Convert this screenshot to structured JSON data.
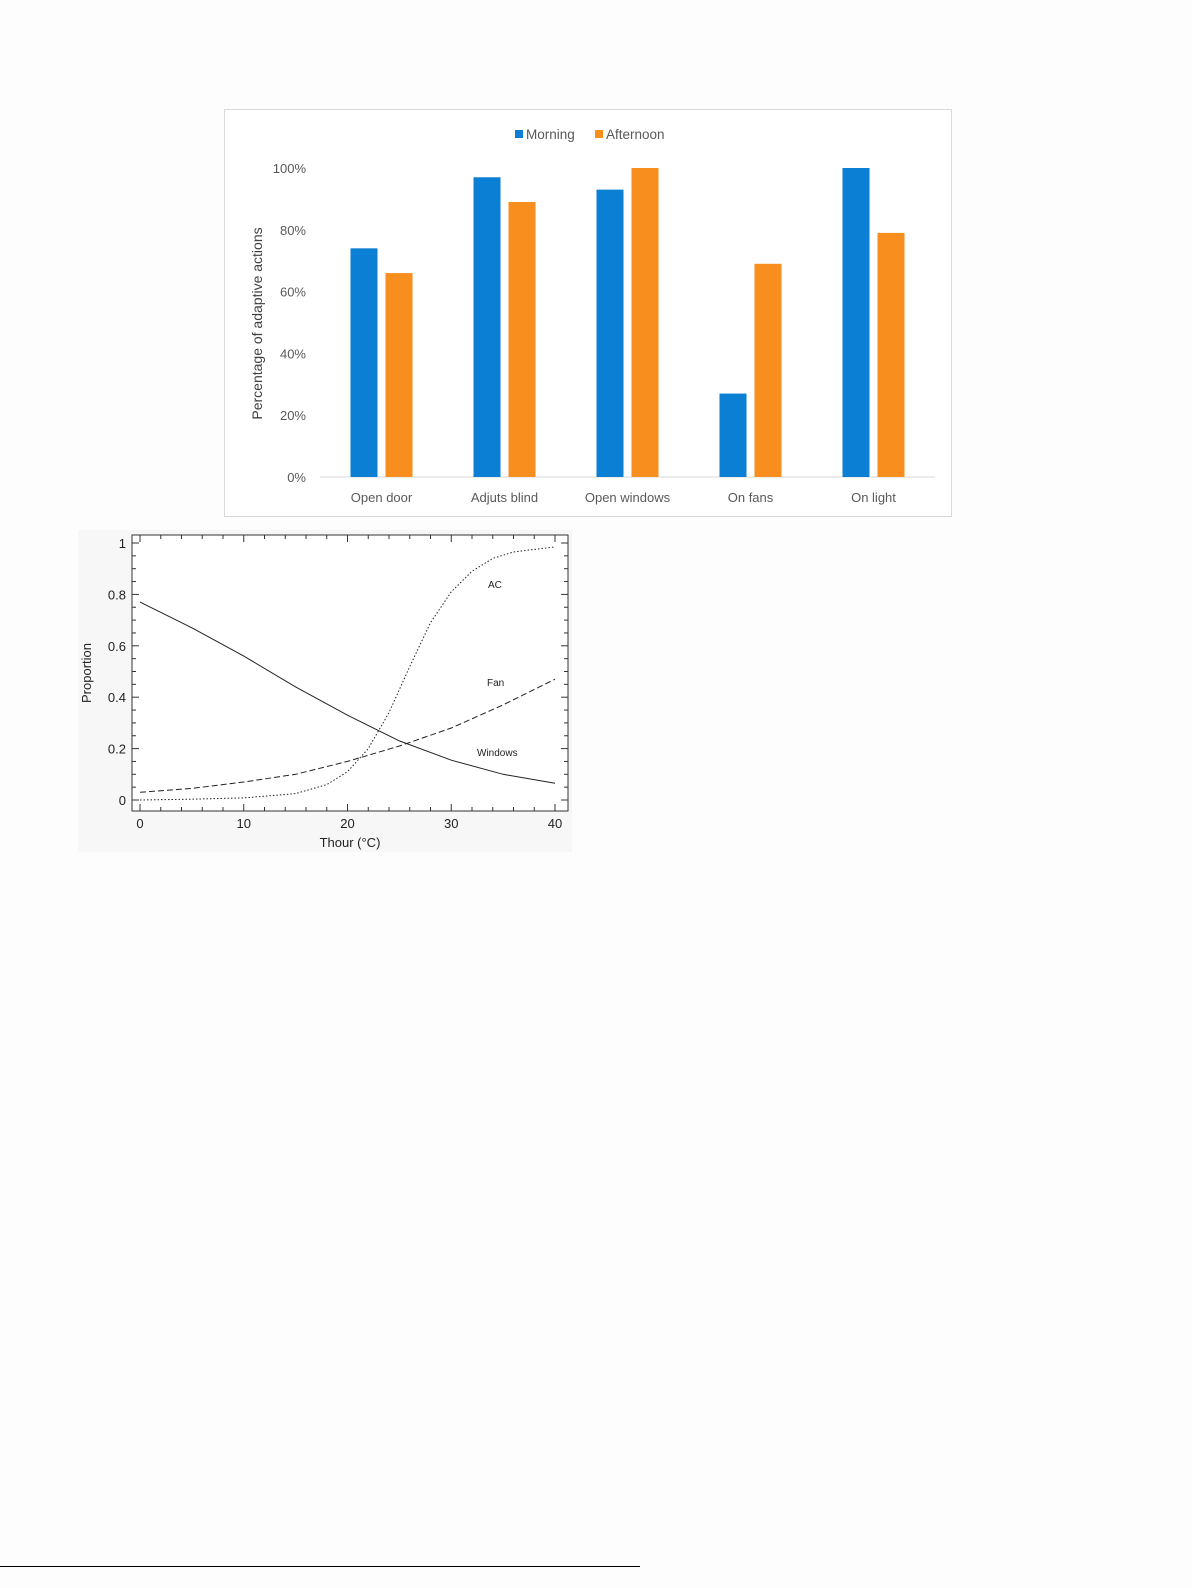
{
  "chart_data": [
    {
      "type": "bar",
      "categories": [
        "Open door",
        "Adjuts blind",
        "Open windows",
        "On fans",
        "On light"
      ],
      "series": [
        {
          "name": "Morning",
          "color": "#0a7fd4",
          "values": [
            74,
            97,
            93,
            27,
            100
          ]
        },
        {
          "name": "Afternoon",
          "color": "#f78e1e",
          "values": [
            66,
            89,
            100,
            69,
            79
          ]
        }
      ],
      "ylabel": "Percentage of adaptive actions",
      "ylim": [
        0,
        100
      ],
      "yticks": [
        "0%",
        "20%",
        "40%",
        "60%",
        "80%",
        "100%"
      ],
      "legend": "top-center",
      "grid": false
    },
    {
      "type": "line",
      "xlabel": "Thour (°C)",
      "ylabel": "Proportion",
      "xlim": [
        0,
        40
      ],
      "ylim": [
        0,
        1
      ],
      "xticks": [
        "0",
        "10",
        "20",
        "30",
        "40"
      ],
      "yticks": [
        "0",
        "0.2",
        "0.4",
        "0.6",
        "0.8",
        "1"
      ],
      "grid": false,
      "series": [
        {
          "name": "AC",
          "style": "dotted",
          "x": [
            0,
            5,
            10,
            15,
            18,
            20,
            22,
            24,
            26,
            28,
            30,
            32,
            34,
            36,
            38,
            40
          ],
          "y": [
            0.0,
            0.003,
            0.008,
            0.025,
            0.06,
            0.11,
            0.2,
            0.34,
            0.52,
            0.69,
            0.81,
            0.89,
            0.94,
            0.965,
            0.975,
            0.985
          ]
        },
        {
          "name": "Fan",
          "style": "dashed",
          "x": [
            0,
            5,
            10,
            15,
            20,
            25,
            30,
            35,
            40
          ],
          "y": [
            0.03,
            0.045,
            0.07,
            0.1,
            0.15,
            0.21,
            0.28,
            0.37,
            0.47
          ]
        },
        {
          "name": "Windows",
          "style": "solid",
          "x": [
            0,
            5,
            10,
            15,
            20,
            25,
            30,
            35,
            40
          ],
          "y": [
            0.77,
            0.67,
            0.56,
            0.44,
            0.33,
            0.23,
            0.155,
            0.1,
            0.065
          ]
        }
      ]
    }
  ]
}
